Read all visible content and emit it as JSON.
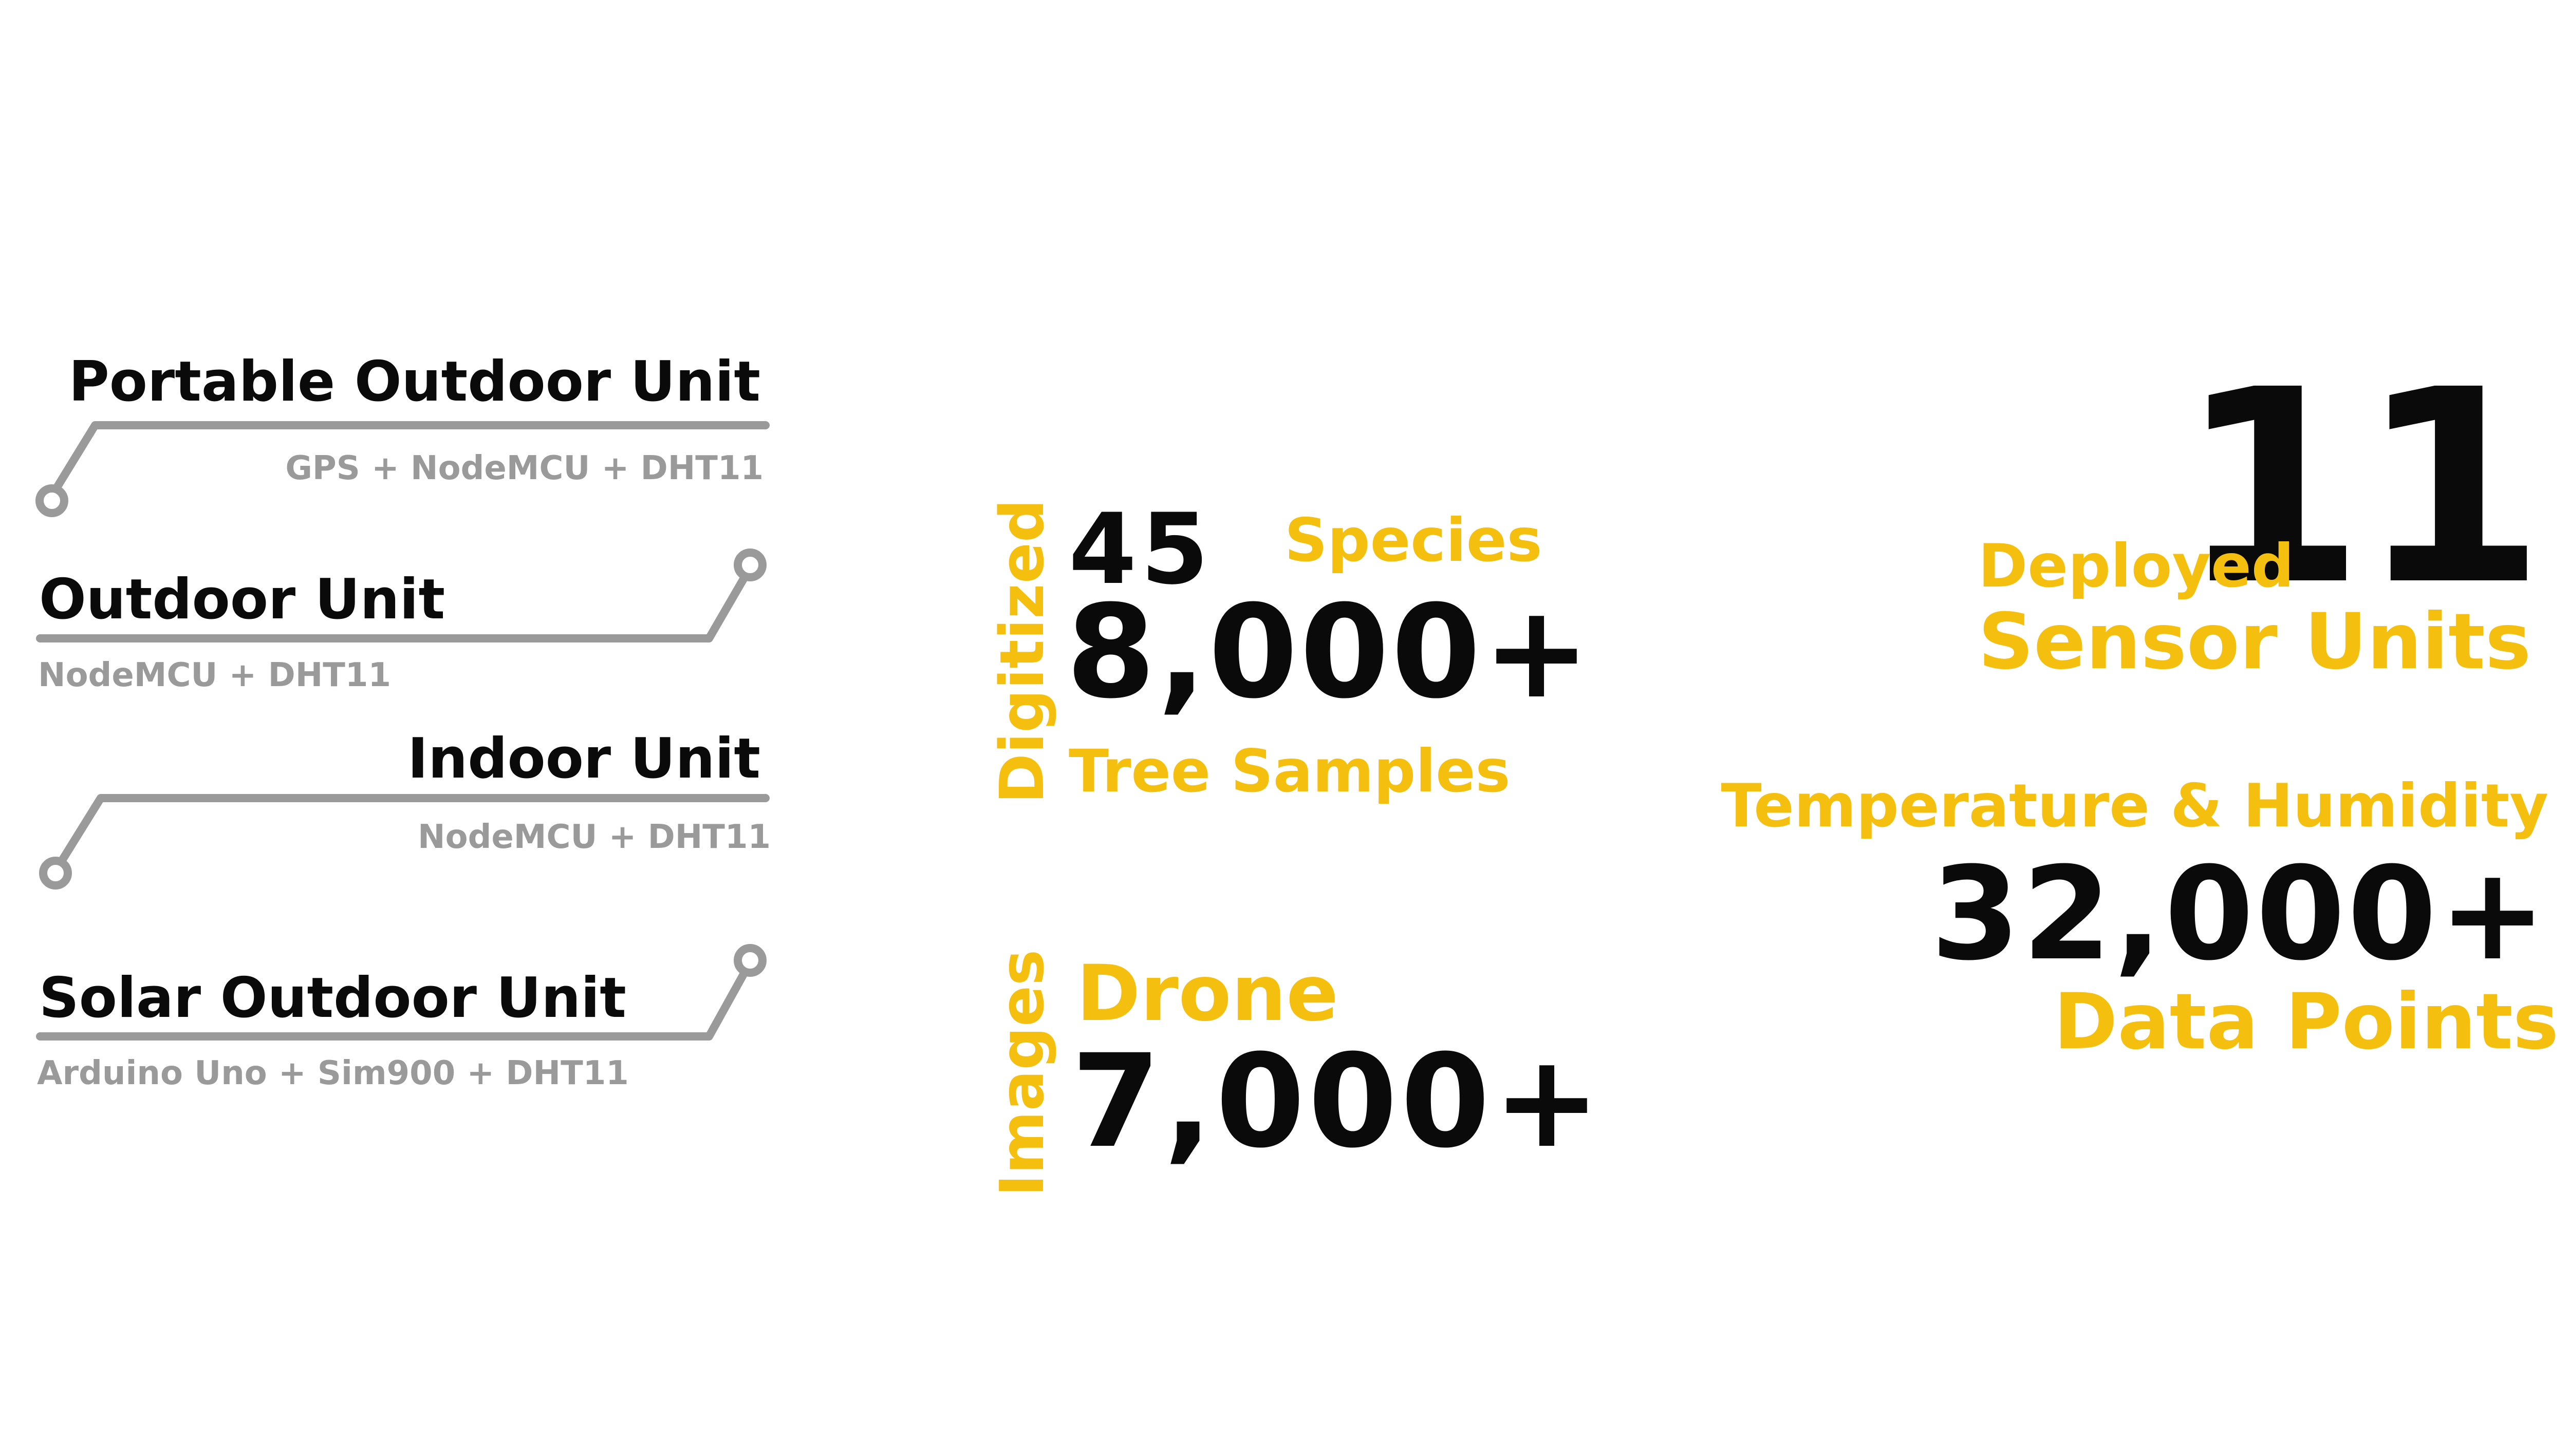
{
  "units": [
    {
      "title": "Portable Outdoor Unit",
      "components": "GPS + NodeMCU + DHT11"
    },
    {
      "title": "Outdoor Unit",
      "components": "NodeMCU + DHT11"
    },
    {
      "title": "Indoor Unit",
      "components": "NodeMCU + DHT11"
    },
    {
      "title": "Solar Outdoor Unit",
      "components": "Arduino Uno + Sim900 + DHT11"
    }
  ],
  "digitized": {
    "side_label": "Digitized",
    "species_count": "45",
    "species_label": "Species",
    "samples_count": "8,000+",
    "samples_label": "Tree Samples"
  },
  "images": {
    "side_label": "Images",
    "drone_label": "Drone",
    "count": "7,000+"
  },
  "sensors": {
    "count": "11",
    "deployed_label": "Deployed",
    "units_label": "Sensor Units"
  },
  "measurements": {
    "label": "Temperature & Humidity",
    "count": "32,000+",
    "points_label": "Data Points"
  },
  "colors": {
    "accent": "#f5bf10",
    "text": "#0a0a0a",
    "muted": "#9a9a9a",
    "line": "#9a9a9a"
  }
}
